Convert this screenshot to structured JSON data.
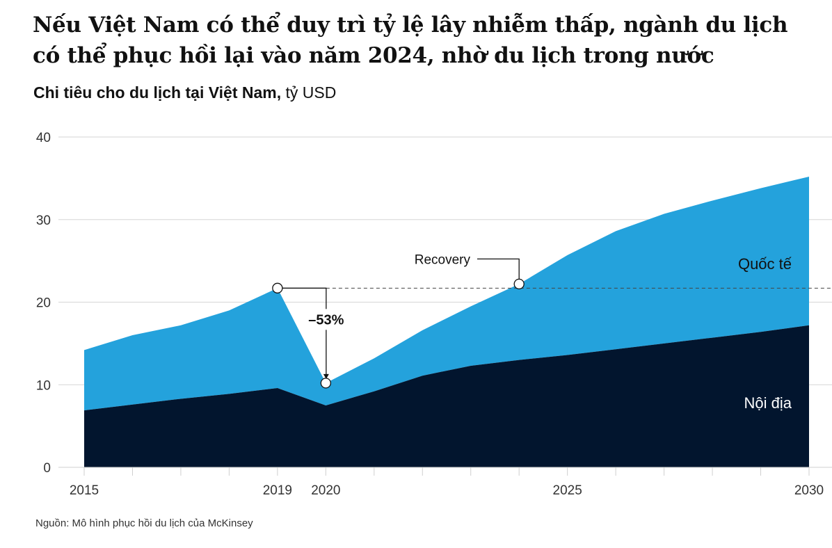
{
  "title": "Nếu Việt Nam có thể duy trì tỷ lệ lây nhiễm thấp, ngành du lịch có thể phục hồi lại vào năm 2024, nhờ du lịch trong nước",
  "subtitle_main": "Chi tiêu cho du lịch tại Việt Nam,",
  "subtitle_unit": "tỷ USD",
  "source": "Nguồn: Mô hình phục hồi du lịch của McKinsey",
  "chart_data": {
    "type": "area",
    "stacked": true,
    "x": [
      2015,
      2016,
      2017,
      2018,
      2019,
      2020,
      2021,
      2022,
      2023,
      2024,
      2025,
      2026,
      2027,
      2028,
      2029,
      2030
    ],
    "x_tick_labels": [
      "2015",
      "2019",
      "2020",
      "2025",
      "2030"
    ],
    "x_tick_values": [
      2015,
      2019,
      2020,
      2025,
      2030
    ],
    "ylim": [
      0,
      40
    ],
    "y_ticks": [
      "0",
      "10",
      "20",
      "30",
      "40"
    ],
    "grid": true,
    "series": [
      {
        "name": "Nội địa",
        "color": "#02152e",
        "values": [
          6.9,
          7.6,
          8.3,
          8.9,
          9.6,
          7.5,
          9.2,
          11.1,
          12.3,
          13.0,
          13.6,
          14.3,
          15.0,
          15.7,
          16.4,
          17.2
        ]
      },
      {
        "name": "Quốc tế",
        "color": "#24a2dc",
        "values": [
          7.3,
          8.4,
          8.9,
          10.1,
          12.1,
          2.7,
          4.0,
          5.5,
          7.2,
          9.2,
          12.1,
          14.3,
          15.7,
          16.6,
          17.4,
          18.0
        ]
      }
    ],
    "annotations": {
      "baseline_total": 21.7,
      "drop_label": "–53%",
      "drop_from": {
        "x": 2019,
        "y": 21.7
      },
      "drop_to": {
        "x": 2020,
        "y": 10.2
      },
      "recovery_label": "Recovery",
      "recovery_point": {
        "x": 2024,
        "y": 22.2
      }
    }
  }
}
